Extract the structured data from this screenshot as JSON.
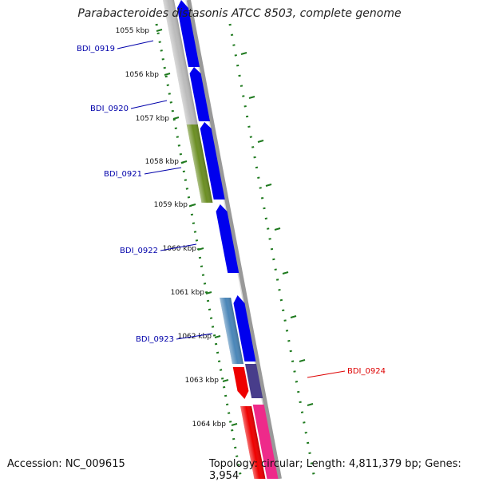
{
  "title": "Parabacteroides distasonis ATCC 8503, complete genome",
  "accession_text": "Accession: NC_009615",
  "topology_text": "Topology: circular; Length: 4,811,379 bp; Genes: 3,954",
  "ticks": [
    "1055 kbp",
    "1056 kbp",
    "1057 kbp",
    "1058 kbp",
    "1059 kbp",
    "1060 kbp",
    "1061 kbp",
    "1062 kbp",
    "1063 kbp",
    "1064 kbp"
  ],
  "gene_labels": [
    {
      "name": "BDI_0919",
      "color": "#0000aa"
    },
    {
      "name": "BDI_0920",
      "color": "#0000aa"
    },
    {
      "name": "BDI_0921",
      "color": "#0000aa"
    },
    {
      "name": "BDI_0922",
      "color": "#0000aa"
    },
    {
      "name": "BDI_0923",
      "color": "#0000aa"
    },
    {
      "name": "BDI_0924",
      "color": "#dd0000"
    }
  ],
  "colors": {
    "tick": "#1f7a1f",
    "backbone": "#888888",
    "cds_forward": "#0000ee",
    "cds_gray": "#bbbbbb",
    "cds_green": "#6b8e23",
    "cds_steelblue": "#4a86b8",
    "cds_red": "#ee0000",
    "cds_purple": "#483d8b",
    "cds_pink": "#ee2a8a"
  }
}
